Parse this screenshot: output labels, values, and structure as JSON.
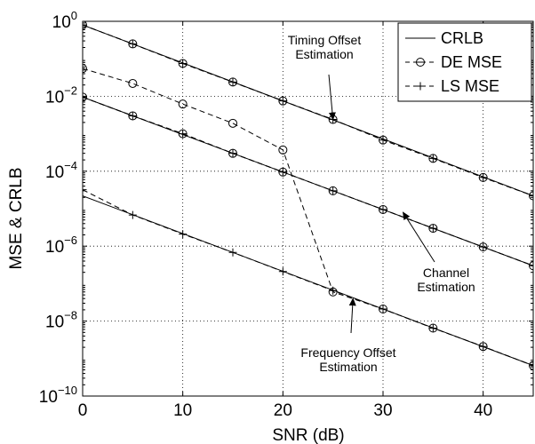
{
  "chart_data": {
    "type": "line",
    "xlabel": "SNR (dB)",
    "ylabel": "MSE & CRLB",
    "xlim": [
      0,
      45
    ],
    "ylim": [
      1e-10,
      1
    ],
    "yscale": "log",
    "grid": true,
    "legend_position": "top-right",
    "x_ticks": [
      0,
      10,
      20,
      30,
      40
    ],
    "y_ticks": [
      {
        "value": 1,
        "base": "10",
        "exp": "0"
      },
      {
        "value": 0.01,
        "base": "10",
        "exp": "−2"
      },
      {
        "value": 0.0001,
        "base": "10",
        "exp": "−4"
      },
      {
        "value": 1e-06,
        "base": "10",
        "exp": "−6"
      },
      {
        "value": 1e-08,
        "base": "10",
        "exp": "−8"
      },
      {
        "value": 1e-10,
        "base": "10",
        "exp": "−10"
      }
    ],
    "legend": [
      {
        "label": "CRLB",
        "style": "solid",
        "marker": "none"
      },
      {
        "label": "DE MSE",
        "style": "dashed",
        "marker": "circle"
      },
      {
        "label": "LS MSE",
        "style": "dashed",
        "marker": "plus"
      }
    ],
    "series": [
      {
        "legend": "CRLB",
        "group": "timing",
        "style": "solid",
        "marker": "none",
        "x": [
          0,
          45
        ],
        "y": [
          0.8,
          2.2e-05
        ]
      },
      {
        "legend": "DE MSE",
        "group": "timing",
        "style": "dashed",
        "marker": "circle",
        "x": [
          0,
          5,
          10,
          15,
          20,
          25,
          30,
          35,
          40,
          45
        ],
        "y": [
          0.8,
          0.25,
          0.075,
          0.024,
          0.0075,
          0.0024,
          0.00068,
          0.00022,
          6.8e-05,
          2.2e-05
        ]
      },
      {
        "legend": "LS MSE",
        "group": "timing",
        "style": "dashed",
        "marker": "plus",
        "x": [
          0,
          5,
          10,
          15,
          20,
          25,
          30,
          35,
          40,
          45
        ],
        "y": [
          0.8,
          0.25,
          0.075,
          0.024,
          0.0075,
          0.0024,
          0.00068,
          0.00022,
          6.8e-05,
          2.2e-05
        ]
      },
      {
        "legend": "CRLB",
        "group": "channel",
        "style": "solid",
        "marker": "none",
        "x": [
          0,
          45
        ],
        "y": [
          0.0095,
          3e-07
        ]
      },
      {
        "legend": "DE MSE",
        "group": "channel",
        "style": "dashed",
        "marker": "circle",
        "x": [
          0,
          5,
          10,
          15,
          20,
          25,
          30,
          35,
          40,
          45
        ],
        "y": [
          0.0095,
          0.003,
          0.001,
          0.0003,
          9.5e-05,
          3e-05,
          9.5e-06,
          3e-06,
          9.5e-07,
          3e-07
        ]
      },
      {
        "legend": "LS MSE",
        "group": "channel",
        "style": "dashed",
        "marker": "plus",
        "x": [
          0,
          5,
          10,
          15,
          20,
          25,
          30,
          35,
          40,
          45
        ],
        "y": [
          0.0095,
          0.003,
          0.001,
          0.0003,
          9.5e-05,
          3e-05,
          9.5e-06,
          3e-06,
          9.5e-07,
          3e-07
        ]
      },
      {
        "legend": "CRLB",
        "group": "frequency",
        "style": "solid",
        "marker": "none",
        "x": [
          0,
          45
        ],
        "y": [
          2.2e-05,
          6.5e-10
        ]
      },
      {
        "legend": "DE MSE",
        "group": "frequency",
        "style": "dashed",
        "marker": "circle",
        "x": [
          0,
          5,
          10,
          15,
          20,
          25,
          30,
          35,
          40,
          45
        ],
        "y": [
          0.055,
          0.022,
          0.0062,
          0.0019,
          0.00037,
          6e-08,
          2.1e-08,
          6.5e-09,
          2.1e-09,
          6.5e-10
        ]
      },
      {
        "legend": "LS MSE",
        "group": "frequency",
        "style": "dashed",
        "marker": "plus",
        "x": [
          0,
          5,
          10,
          15,
          20,
          25,
          30,
          35,
          40,
          45
        ],
        "y": [
          3.2e-05,
          6.8e-06,
          2.1e-06,
          6.8e-07,
          2.1e-07,
          6.5e-08,
          2.1e-08,
          6.5e-09,
          2.1e-09,
          6.5e-10
        ]
      }
    ],
    "annotations": [
      {
        "lines": [
          "Timing Offset",
          "Estimation"
        ],
        "arrow_to": {
          "x": 25,
          "y": 0.0024
        }
      },
      {
        "lines": [
          "Channel",
          "Estimation"
        ],
        "arrow_to": {
          "x": 32,
          "y": 8e-06
        }
      },
      {
        "lines": [
          "Frequency Offset",
          "Estimation"
        ],
        "arrow_to": {
          "x": 27,
          "y": 4e-08
        }
      }
    ]
  }
}
